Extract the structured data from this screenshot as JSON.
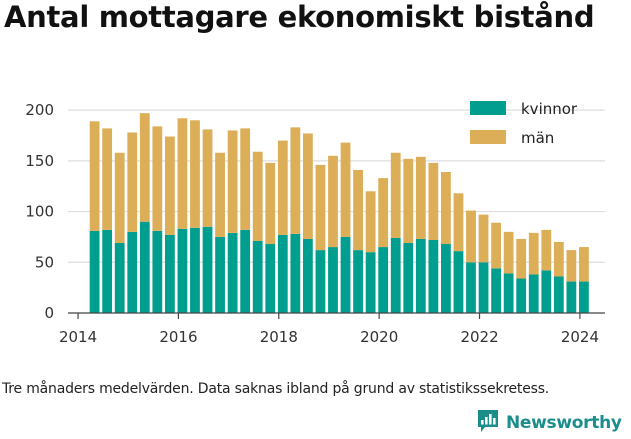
{
  "title": "Antal mottagare ekonomiskt bistånd",
  "footnote": "Tre månaders medelvärden. Data saknas ibland på grund av statistikssekretess.",
  "brand": {
    "name": "Newsworthy",
    "icon": "newsworthy-logo-icon",
    "color": "#1b8e8c"
  },
  "colors": {
    "kvinnor": "#009e8f",
    "man": "#dcae58",
    "grid": "#dddddd"
  },
  "chart_data": {
    "type": "bar",
    "stacked": true,
    "xlim": [
      2013.8,
      2024.5
    ],
    "ylim": [
      0,
      210
    ],
    "xticks": [
      "2014",
      "2016",
      "2018",
      "2020",
      "2022",
      "2024"
    ],
    "yticks": [
      "0",
      "50",
      "100",
      "150",
      "200"
    ],
    "grid": true,
    "legend_position": "top-right",
    "x": [
      2014.33,
      2014.58,
      2014.83,
      2015.08,
      2015.33,
      2015.58,
      2015.83,
      2016.08,
      2016.33,
      2016.58,
      2016.83,
      2017.08,
      2017.33,
      2017.58,
      2017.83,
      2018.08,
      2018.33,
      2018.58,
      2018.83,
      2019.08,
      2019.33,
      2019.58,
      2019.83,
      2020.08,
      2020.33,
      2020.58,
      2020.83,
      2021.08,
      2021.33,
      2021.58,
      2021.83,
      2022.08,
      2022.33,
      2022.58,
      2022.83,
      2023.08,
      2023.33,
      2023.58,
      2023.83,
      2024.08
    ],
    "series": [
      {
        "name": "kvinnor",
        "color": "#009e8f",
        "values": [
          81,
          82,
          69,
          80,
          90,
          81,
          77,
          83,
          84,
          85,
          75,
          79,
          82,
          71,
          68,
          77,
          78,
          73,
          62,
          65,
          75,
          62,
          60,
          65,
          74,
          69,
          73,
          72,
          68,
          61,
          50,
          50,
          44,
          39,
          34,
          38,
          42,
          36,
          31,
          31
        ]
      },
      {
        "name": "män",
        "color": "#dcae58",
        "values": [
          108,
          100,
          89,
          98,
          107,
          103,
          97,
          109,
          106,
          96,
          83,
          101,
          100,
          88,
          80,
          93,
          105,
          104,
          84,
          90,
          93,
          79,
          60,
          68,
          84,
          83,
          81,
          76,
          71,
          57,
          51,
          47,
          45,
          41,
          39,
          41,
          40,
          34,
          31,
          34
        ]
      }
    ]
  }
}
